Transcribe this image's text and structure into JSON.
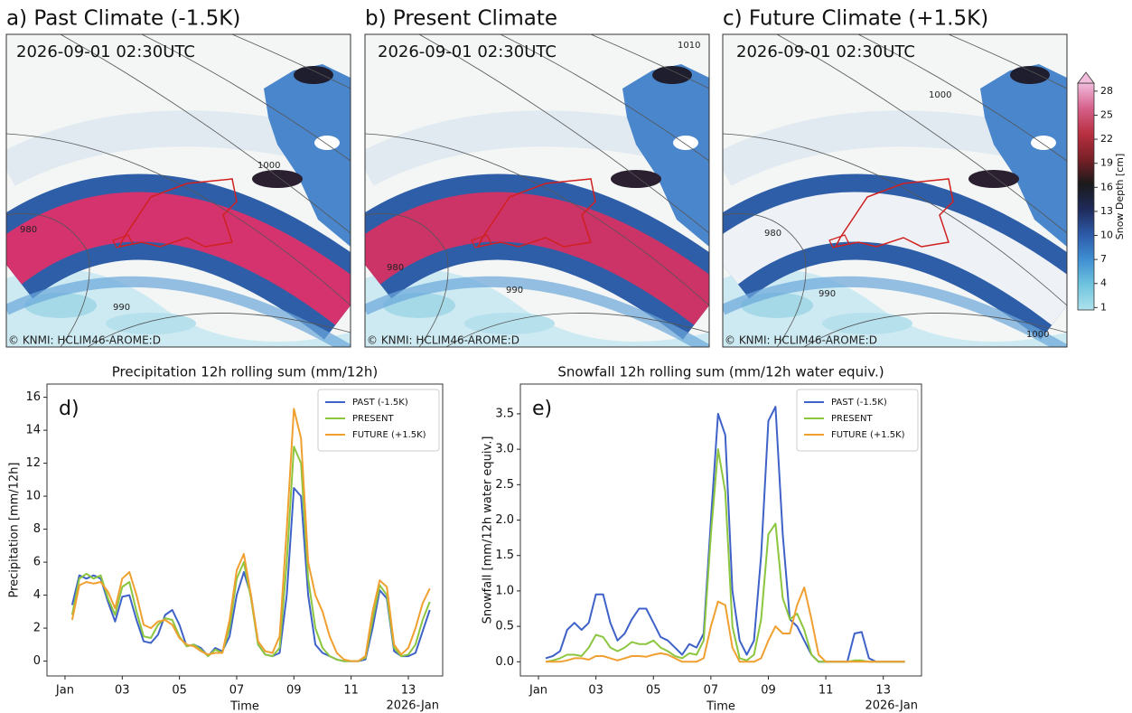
{
  "maps": {
    "panels": [
      {
        "title": "a) Past Climate (-1.5K)",
        "timestamp": "2026-09-01 02:30UTC",
        "credit": "© KNMI: HCLIM46-AROME:D",
        "contour_labels": [
          1000,
          980,
          990
        ]
      },
      {
        "title": "b) Present Climate",
        "timestamp": "2026-09-01 02:30UTC",
        "credit": "© KNMI: HCLIM46-AROME:D",
        "contour_labels": [
          1010,
          980,
          990
        ]
      },
      {
        "title": "c) Future Climate (+1.5K)",
        "timestamp": "2026-09-01 02:30UTC",
        "credit": "© KNMI: HCLIM46-AROME:D",
        "contour_labels": [
          1000,
          980,
          990,
          1000
        ]
      }
    ],
    "colorbar": {
      "label": "Snow Depth [cm]",
      "lim": [
        0.7,
        29
      ],
      "ticks": [
        1,
        4,
        7,
        10,
        13,
        16,
        19,
        22,
        25,
        28
      ],
      "colors": [
        "#aee2ec",
        "#6fc4de",
        "#3f8fd2",
        "#2c5aa8",
        "#1f2a5a",
        "#1a1a1a",
        "#7a2028",
        "#b83040",
        "#d6608a",
        "#f2bcdc"
      ]
    }
  },
  "chart_data": [
    {
      "type": "line",
      "title": "Precipitation 12h rolling sum (mm/12h)",
      "annotation": "d)",
      "xlabel": "Time",
      "ylabel": "Precipitation [mm/12h]",
      "x_offset_label": "2026-Jan",
      "x": [
        1.25,
        1.5,
        1.75,
        2,
        2.25,
        2.5,
        2.75,
        3,
        3.25,
        3.5,
        3.75,
        4,
        4.25,
        4.5,
        4.75,
        5,
        5.25,
        5.5,
        5.75,
        6,
        6.25,
        6.5,
        6.75,
        7,
        7.25,
        7.5,
        7.75,
        8,
        8.25,
        8.5,
        8.75,
        9,
        9.25,
        9.5,
        9.75,
        10,
        10.25,
        10.5,
        10.75,
        11,
        11.25,
        11.5,
        11.75,
        12,
        12.25,
        12.5,
        12.75,
        13,
        13.25,
        13.5,
        13.75
      ],
      "xlim": [
        0.37,
        14.2
      ],
      "xticks": [
        {
          "value": 1,
          "label": "Jan"
        },
        {
          "value": 3,
          "label": "03"
        },
        {
          "value": 5,
          "label": "05"
        },
        {
          "value": 7,
          "label": "07"
        },
        {
          "value": 9,
          "label": "09"
        },
        {
          "value": 11,
          "label": "11"
        },
        {
          "value": 13,
          "label": "13"
        }
      ],
      "ylim": [
        -0.9,
        16.8
      ],
      "yticks": [
        0,
        2,
        4,
        6,
        8,
        10,
        12,
        14,
        16
      ],
      "legend": "upper right",
      "series": [
        {
          "name": "PAST (-1.5K)",
          "color": "#3f62c8",
          "values": [
            3.4,
            5.2,
            5.0,
            5.2,
            5.0,
            3.6,
            2.4,
            3.9,
            4.0,
            2.5,
            1.2,
            1.1,
            1.6,
            2.8,
            3.1,
            2.2,
            0.9,
            1.0,
            0.8,
            0.3,
            0.8,
            0.6,
            1.5,
            4.0,
            5.4,
            4.0,
            1.0,
            0.4,
            0.3,
            0.5,
            4.0,
            10.5,
            10.0,
            4.0,
            1.0,
            0.5,
            0.3,
            0.1,
            0.0,
            0.0,
            0.0,
            0.1,
            2.0,
            4.3,
            3.8,
            0.6,
            0.3,
            0.3,
            0.5,
            1.8,
            3.1
          ]
        },
        {
          "name": "PRESENT",
          "color": "#8cc63f",
          "values": [
            2.8,
            5.0,
            5.3,
            5.0,
            5.2,
            3.8,
            2.8,
            4.5,
            4.8,
            3.0,
            1.5,
            1.4,
            2.2,
            2.6,
            2.5,
            1.5,
            0.9,
            1.0,
            0.7,
            0.3,
            0.7,
            0.5,
            2.0,
            5.0,
            6.0,
            3.8,
            1.0,
            0.4,
            0.3,
            0.8,
            6.0,
            13.0,
            12.0,
            5.0,
            2.0,
            0.8,
            0.3,
            0.1,
            0.0,
            0.0,
            0.0,
            0.2,
            2.5,
            4.6,
            4.0,
            0.8,
            0.3,
            0.4,
            1.0,
            2.5,
            3.6
          ]
        },
        {
          "name": "FUTURE (+1.5K)",
          "color": "#f0a030",
          "values": [
            2.5,
            4.6,
            4.8,
            4.7,
            4.8,
            4.2,
            3.2,
            5.0,
            5.4,
            4.0,
            2.2,
            2.0,
            2.4,
            2.5,
            2.2,
            1.4,
            1.0,
            0.9,
            0.6,
            0.4,
            0.5,
            0.5,
            2.5,
            5.5,
            6.5,
            4.0,
            1.2,
            0.6,
            0.5,
            1.5,
            8.0,
            15.3,
            13.5,
            6.0,
            4.0,
            3.0,
            1.5,
            0.5,
            0.1,
            0.0,
            0.0,
            0.3,
            3.0,
            4.9,
            4.5,
            1.0,
            0.4,
            0.8,
            2.0,
            3.5,
            4.4
          ]
        }
      ]
    },
    {
      "type": "line",
      "title": "Snowfall 12h rolling sum (mm/12h water equiv.)",
      "annotation": "e)",
      "xlabel": "Time",
      "ylabel": "Snowfall [mm/12h water equiv.]",
      "x_offset_label": "2026-Jan",
      "x": [
        1.25,
        1.5,
        1.75,
        2,
        2.25,
        2.5,
        2.75,
        3,
        3.25,
        3.5,
        3.75,
        4,
        4.25,
        4.5,
        4.75,
        5,
        5.25,
        5.5,
        5.75,
        6,
        6.25,
        6.5,
        6.75,
        7,
        7.25,
        7.5,
        7.75,
        8,
        8.25,
        8.5,
        8.75,
        9,
        9.25,
        9.5,
        9.75,
        10,
        10.25,
        10.5,
        10.75,
        11,
        11.25,
        11.5,
        11.75,
        12,
        12.25,
        12.5,
        12.75,
        13,
        13.25,
        13.5,
        13.75
      ],
      "xlim": [
        0.37,
        14.33
      ],
      "xticks": [
        {
          "value": 1,
          "label": "Jan"
        },
        {
          "value": 3,
          "label": "03"
        },
        {
          "value": 5,
          "label": "05"
        },
        {
          "value": 7,
          "label": "07"
        },
        {
          "value": 9,
          "label": "09"
        },
        {
          "value": 11,
          "label": "11"
        },
        {
          "value": 13,
          "label": "13"
        }
      ],
      "ylim": [
        -0.2,
        3.92
      ],
      "yticks": [
        {
          "value": 0,
          "label": "0.0"
        },
        0.5,
        {
          "value": 1,
          "label": "1.0"
        },
        1.5,
        {
          "value": 2,
          "label": "2.0"
        },
        2.5,
        {
          "value": 3,
          "label": "3.0"
        },
        3.5
      ],
      "legend": "upper right",
      "series": [
        {
          "name": "PAST (-1.5K)",
          "color": "#3f62c8",
          "values": [
            0.05,
            0.08,
            0.15,
            0.45,
            0.55,
            0.45,
            0.55,
            0.95,
            0.95,
            0.55,
            0.3,
            0.4,
            0.6,
            0.75,
            0.75,
            0.55,
            0.35,
            0.3,
            0.2,
            0.1,
            0.25,
            0.2,
            0.4,
            2.0,
            3.5,
            3.2,
            1.0,
            0.3,
            0.1,
            0.3,
            1.5,
            3.4,
            3.6,
            1.8,
            0.6,
            0.5,
            0.3,
            0.1,
            0,
            0,
            0,
            0,
            0,
            0.4,
            0.42,
            0.05,
            0,
            0,
            0,
            0,
            0
          ]
        },
        {
          "name": "PRESENT",
          "color": "#8cc63f",
          "values": [
            0,
            0.02,
            0.05,
            0.1,
            0.1,
            0.08,
            0.2,
            0.38,
            0.35,
            0.2,
            0.15,
            0.2,
            0.28,
            0.25,
            0.25,
            0.3,
            0.2,
            0.15,
            0.08,
            0.05,
            0.12,
            0.1,
            0.3,
            1.8,
            3.0,
            2.4,
            0.5,
            0.05,
            0.02,
            0.1,
            0.6,
            1.8,
            1.95,
            0.9,
            0.6,
            0.68,
            0.45,
            0.1,
            0,
            0,
            0,
            0,
            0,
            0.02,
            0.02,
            0,
            0,
            0,
            0,
            0,
            0
          ]
        },
        {
          "name": "FUTURE (+1.5K)",
          "color": "#f0a030",
          "values": [
            0,
            0,
            0,
            0.02,
            0.05,
            0.05,
            0.03,
            0.08,
            0.08,
            0.05,
            0.02,
            0.05,
            0.08,
            0.08,
            0.07,
            0.1,
            0.12,
            0.1,
            0.05,
            0,
            0,
            0,
            0.05,
            0.5,
            0.85,
            0.8,
            0.2,
            0,
            0,
            0,
            0.05,
            0.3,
            0.5,
            0.4,
            0.4,
            0.8,
            1.05,
            0.6,
            0.1,
            0,
            0,
            0,
            0,
            0,
            0,
            0,
            0,
            0,
            0,
            0,
            0
          ]
        }
      ]
    }
  ]
}
